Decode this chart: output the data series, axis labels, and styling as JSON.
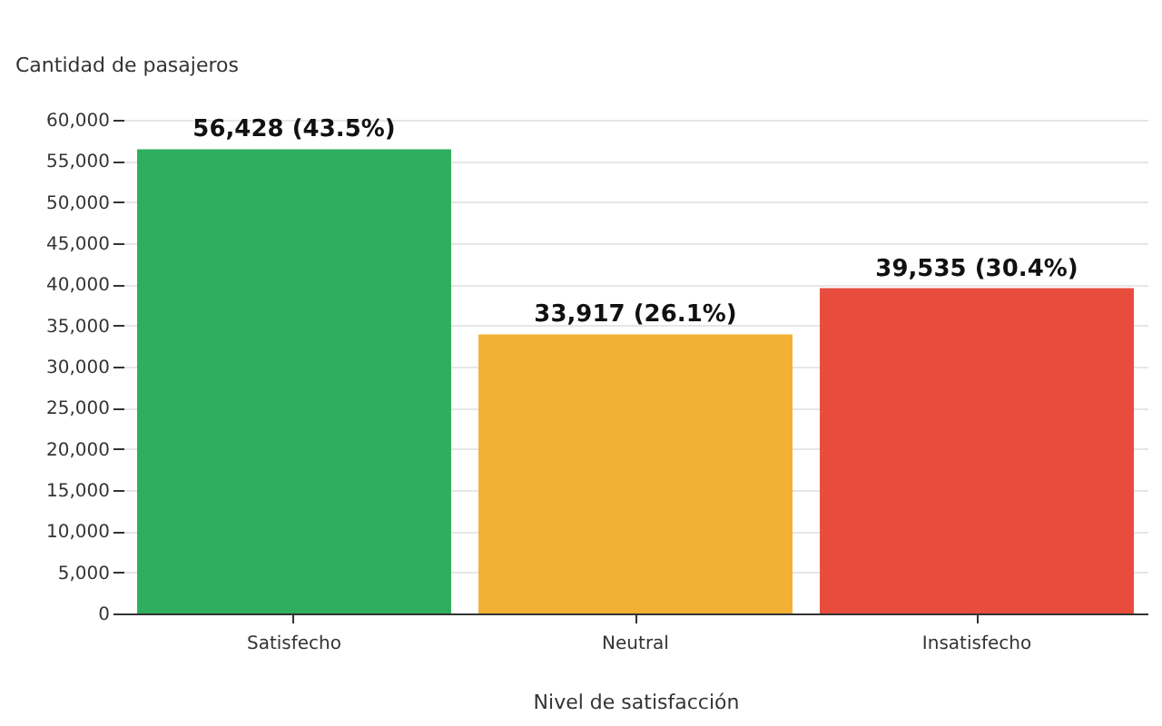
{
  "chart_data": {
    "type": "bar",
    "categories": [
      "Satisfecho",
      "Neutral",
      "Insatisfecho"
    ],
    "values": [
      56428,
      33917,
      39535
    ],
    "colors": [
      "#2eae5e",
      "#f2b035",
      "#e74c3c"
    ],
    "value_labels": [
      "56,428 (43.5%)",
      "33,917 (26.1%)",
      "39,535 (30.4%)"
    ],
    "xlabel": "Nivel de satisfacción",
    "ylabel": "Cantidad de pasajeros",
    "ylim": [
      0,
      60000
    ],
    "yticks": [
      0,
      {
        "value": 5000,
        "label": "5,000"
      },
      {
        "value": 10000,
        "label": "10,000"
      },
      {
        "value": 15000,
        "label": "15,000"
      },
      {
        "value": 20000,
        "label": "20,000"
      },
      {
        "value": 25000,
        "label": "25,000"
      },
      {
        "value": 30000,
        "label": "30,000"
      },
      {
        "value": 35000,
        "label": "35,000"
      },
      {
        "value": 40000,
        "label": "40,000"
      },
      {
        "value": 45000,
        "label": "45,000"
      },
      {
        "value": 50000,
        "label": "50,000"
      },
      {
        "value": 55000,
        "label": "55,000"
      },
      {
        "value": 60000,
        "label": "60,000"
      }
    ],
    "grid": "y"
  }
}
